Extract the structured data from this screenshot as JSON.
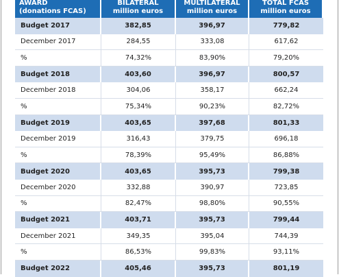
{
  "table": {
    "columns": [
      {
        "title": "AWARD",
        "subtitle": "(donations FCAS)"
      },
      {
        "title": "BILATERAL",
        "subtitle": "million euros"
      },
      {
        "title": "MULTILATERAL",
        "subtitle": "million euros"
      },
      {
        "title": "TOTAL FCAS",
        "subtitle": "million euros"
      }
    ],
    "rows": [
      [
        "Budget  2017",
        "382,85",
        "396,97",
        "779,82"
      ],
      [
        "December 2017",
        "284,55",
        "333,08",
        "617,62"
      ],
      [
        "%",
        "74,32%",
        "83,90%",
        "79,20%"
      ],
      [
        "Budget  2018",
        "403,60",
        "396,97",
        "800,57"
      ],
      [
        "December 2018",
        "304,06",
        "358,17",
        "662,24"
      ],
      [
        "%",
        "75,34%",
        "90,23%",
        "82,72%"
      ],
      [
        "Budget  2019",
        "403,65",
        "397,68",
        "801,33"
      ],
      [
        "December 2019",
        "316,43",
        "379,75",
        "696,18"
      ],
      [
        "%",
        "78,39%",
        "95,49%",
        "86,88%"
      ],
      [
        "Budget  2020",
        "403,65",
        "395,73",
        "799,38"
      ],
      [
        "December 2020",
        "332,88",
        "390,97",
        "723,85"
      ],
      [
        "%",
        "82,47%",
        "98,80%",
        "90,55%"
      ],
      [
        "Budget  2021",
        "403,71",
        "395,73",
        "799,44"
      ],
      [
        "December 2021",
        "349,35",
        "395,04",
        "744,39"
      ],
      [
        "%",
        "86,53%",
        "99,83%",
        "93,11%"
      ],
      [
        "Budget  2022",
        "405,46",
        "395,73",
        "801,19"
      ]
    ]
  }
}
